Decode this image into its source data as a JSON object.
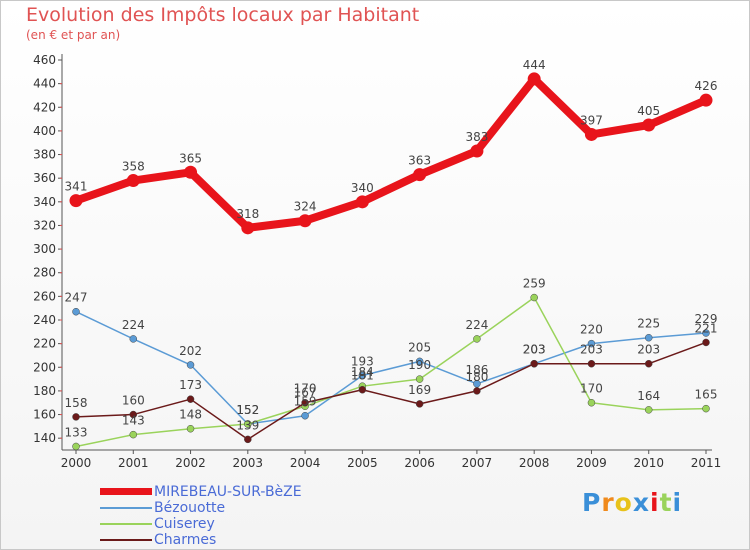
{
  "header": {
    "title": "Evolution des Impôts locaux par Habitant",
    "subtitle": "(en € et par an)"
  },
  "chart_data": {
    "type": "line",
    "title": "Evolution des Impôts locaux par Habitant",
    "subtitle": "(en € et par an)",
    "x": [
      "2000",
      "2001",
      "2002",
      "2003",
      "2004",
      "2005",
      "2006",
      "2007",
      "2008",
      "2009",
      "2010",
      "2011"
    ],
    "ylim": [
      130,
      460
    ],
    "yticks": [
      140,
      160,
      180,
      200,
      220,
      240,
      260,
      280,
      300,
      320,
      340,
      360,
      380,
      400,
      420,
      440,
      460
    ],
    "grid": false,
    "legend_position": "bottom-left",
    "series": [
      {
        "name": "MIREBEAU-SUR-BèZE",
        "color": "#e8141b",
        "values": [
          341,
          358,
          365,
          318,
          324,
          340,
          363,
          383,
          444,
          397,
          405,
          426
        ],
        "labels": [
          "341",
          "358",
          "365",
          "318",
          "324",
          "340",
          "363",
          "383",
          "444",
          "397",
          "405",
          "426"
        ]
      },
      {
        "name": "Bézouotte",
        "color": "#5b9bd5",
        "values": [
          247,
          224,
          202,
          152,
          159,
          193,
          205,
          186,
          203,
          220,
          225,
          229
        ],
        "labels": [
          "247",
          "224",
          "202",
          "152",
          "159",
          "193",
          "205",
          "186",
          "203",
          "220",
          "225",
          "229"
        ]
      },
      {
        "name": "Cuiserey",
        "color": "#9ad35b",
        "values": [
          133,
          143,
          148,
          152,
          167,
          184,
          190,
          224,
          259,
          170,
          164,
          165
        ],
        "labels": [
          "133",
          "143",
          "148",
          "152",
          "167",
          "184",
          "190",
          "224",
          "259",
          "170",
          "164",
          "165"
        ]
      },
      {
        "name": "Charmes",
        "color": "#6b1a1a",
        "values": [
          158,
          160,
          173,
          139,
          170,
          181,
          169,
          180,
          203,
          203,
          203,
          221
        ],
        "labels": [
          "158",
          "160",
          "173",
          "139",
          "170",
          "181",
          "169",
          "180",
          "203",
          "203",
          "203",
          "221"
        ]
      }
    ]
  },
  "logo": {
    "text": "Proxiti",
    "letters": [
      "P",
      "r",
      "o",
      "x",
      "i",
      "t",
      "i"
    ],
    "colors": [
      "#3a8fd8",
      "#f08a1c",
      "#e8c21a",
      "#3a8fd8",
      "#e8141b",
      "#9ad35b",
      "#3a8fd8"
    ]
  }
}
